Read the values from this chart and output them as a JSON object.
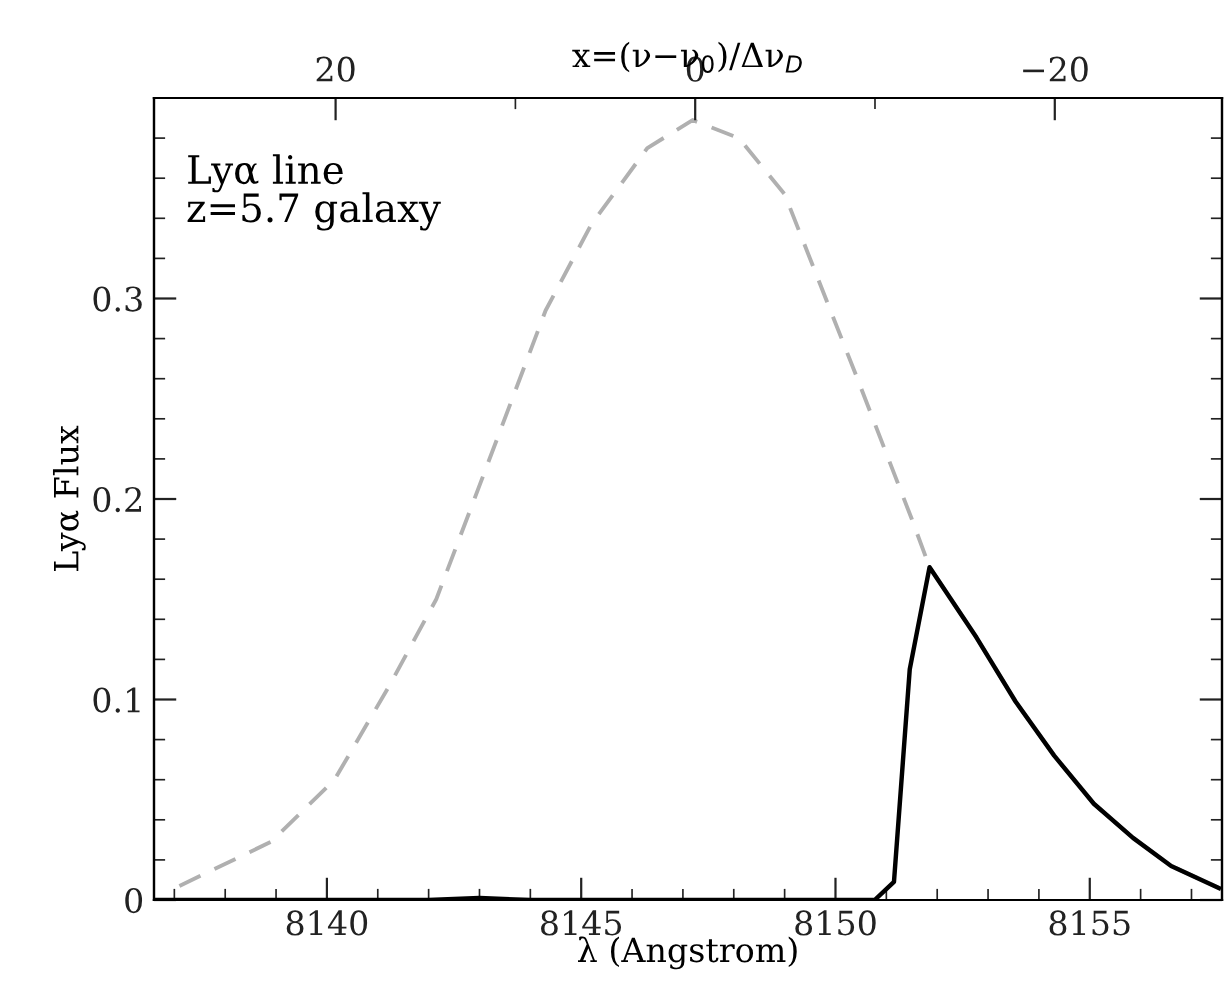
{
  "chart_data": {
    "type": "line",
    "xlabel": "λ (Angstrom)",
    "ylabel": "Lyα Flux",
    "x2label": "x=(ν−ν$_{0}$)/Δν$_{D}$",
    "annotations": [
      "Lyα line\nz=5.7 galaxy"
    ],
    "series": [
      {
        "color": "#b0b0b0",
        "line_style": "dashed",
        "x": [
          8137.1,
          8138.9,
          8140.15,
          8141.23,
          8142.15,
          8142.9,
          8144.3,
          8145.2,
          8146.3,
          8147.19,
          8148.1,
          8149.0,
          8150.4,
          8151.5,
          8151.85,
          8152.77,
          8153.54,
          8154.3,
          8155.08,
          8155.85,
          8156.6,
          8157.54
        ],
        "values": [
          0.007,
          0.029,
          0.06,
          0.107,
          0.15,
          0.2,
          0.294,
          0.337,
          0.375,
          0.389,
          0.38,
          0.352,
          0.262,
          0.19,
          0.166,
          0.131,
          0.099,
          0.072,
          0.048,
          0.031,
          0.017,
          0.006
        ]
      },
      {
        "color": "#000000",
        "line_style": "solid",
        "x": [
          8136.6,
          8142.0,
          8143.0,
          8144.0,
          8150.77,
          8151.15,
          8151.46,
          8151.85,
          8152.77,
          8153.54,
          8154.3,
          8155.08,
          8155.85,
          8156.6,
          8157.54
        ],
        "values": [
          0,
          0,
          0.001,
          0,
          0,
          0.009,
          0.115,
          0.166,
          0.131,
          0.099,
          0.072,
          0.048,
          0.031,
          0.017,
          0.006
        ]
      }
    ],
    "xlim": [
      8136.6,
      8157.6
    ],
    "ylim": [
      0,
      0.4
    ],
    "x2lim": [
      30.1,
      -29.3
    ],
    "xticks": [
      8140,
      8145,
      8150,
      8155,
      {
        "value": 8137,
        "label": null
      },
      {
        "value": 8138,
        "label": null
      },
      {
        "value": 8139,
        "label": null
      },
      {
        "value": 8141,
        "label": null
      },
      {
        "value": 8142,
        "label": null
      },
      {
        "value": 8143,
        "label": null
      },
      {
        "value": 8144,
        "label": null
      },
      {
        "value": 8146,
        "label": null
      },
      {
        "value": 8147,
        "label": null
      },
      {
        "value": 8148,
        "label": null
      },
      {
        "value": 8149,
        "label": null
      },
      {
        "value": 8151,
        "label": null
      },
      {
        "value": 8152,
        "label": null
      },
      {
        "value": 8153,
        "label": null
      },
      {
        "value": 8154,
        "label": null
      },
      {
        "value": 8156,
        "label": null
      },
      {
        "value": 8157,
        "label": null
      }
    ],
    "yticks": [
      0,
      0.1,
      0.2,
      0.3,
      {
        "value": 0.02,
        "label": null
      },
      {
        "value": 0.04,
        "label": null
      },
      {
        "value": 0.06,
        "label": null
      },
      {
        "value": 0.08,
        "label": null
      },
      {
        "value": 0.12,
        "label": null
      },
      {
        "value": 0.14,
        "label": null
      },
      {
        "value": 0.16,
        "label": null
      },
      {
        "value": 0.18,
        "label": null
      },
      {
        "value": 0.22,
        "label": null
      },
      {
        "value": 0.24,
        "label": null
      },
      {
        "value": 0.26,
        "label": null
      },
      {
        "value": 0.28,
        "label": null
      },
      {
        "value": 0.32,
        "label": null
      },
      {
        "value": 0.34,
        "label": null
      },
      {
        "value": 0.36,
        "label": null
      },
      {
        "value": 0.38,
        "label": null
      }
    ],
    "x2ticks": [
      20,
      0,
      {
        "value": -20,
        "label": "−20"
      },
      {
        "value": 10,
        "label": null
      },
      {
        "value": -10,
        "label": null
      }
    ],
    "grid": false,
    "legend": false,
    "marker": "none"
  }
}
